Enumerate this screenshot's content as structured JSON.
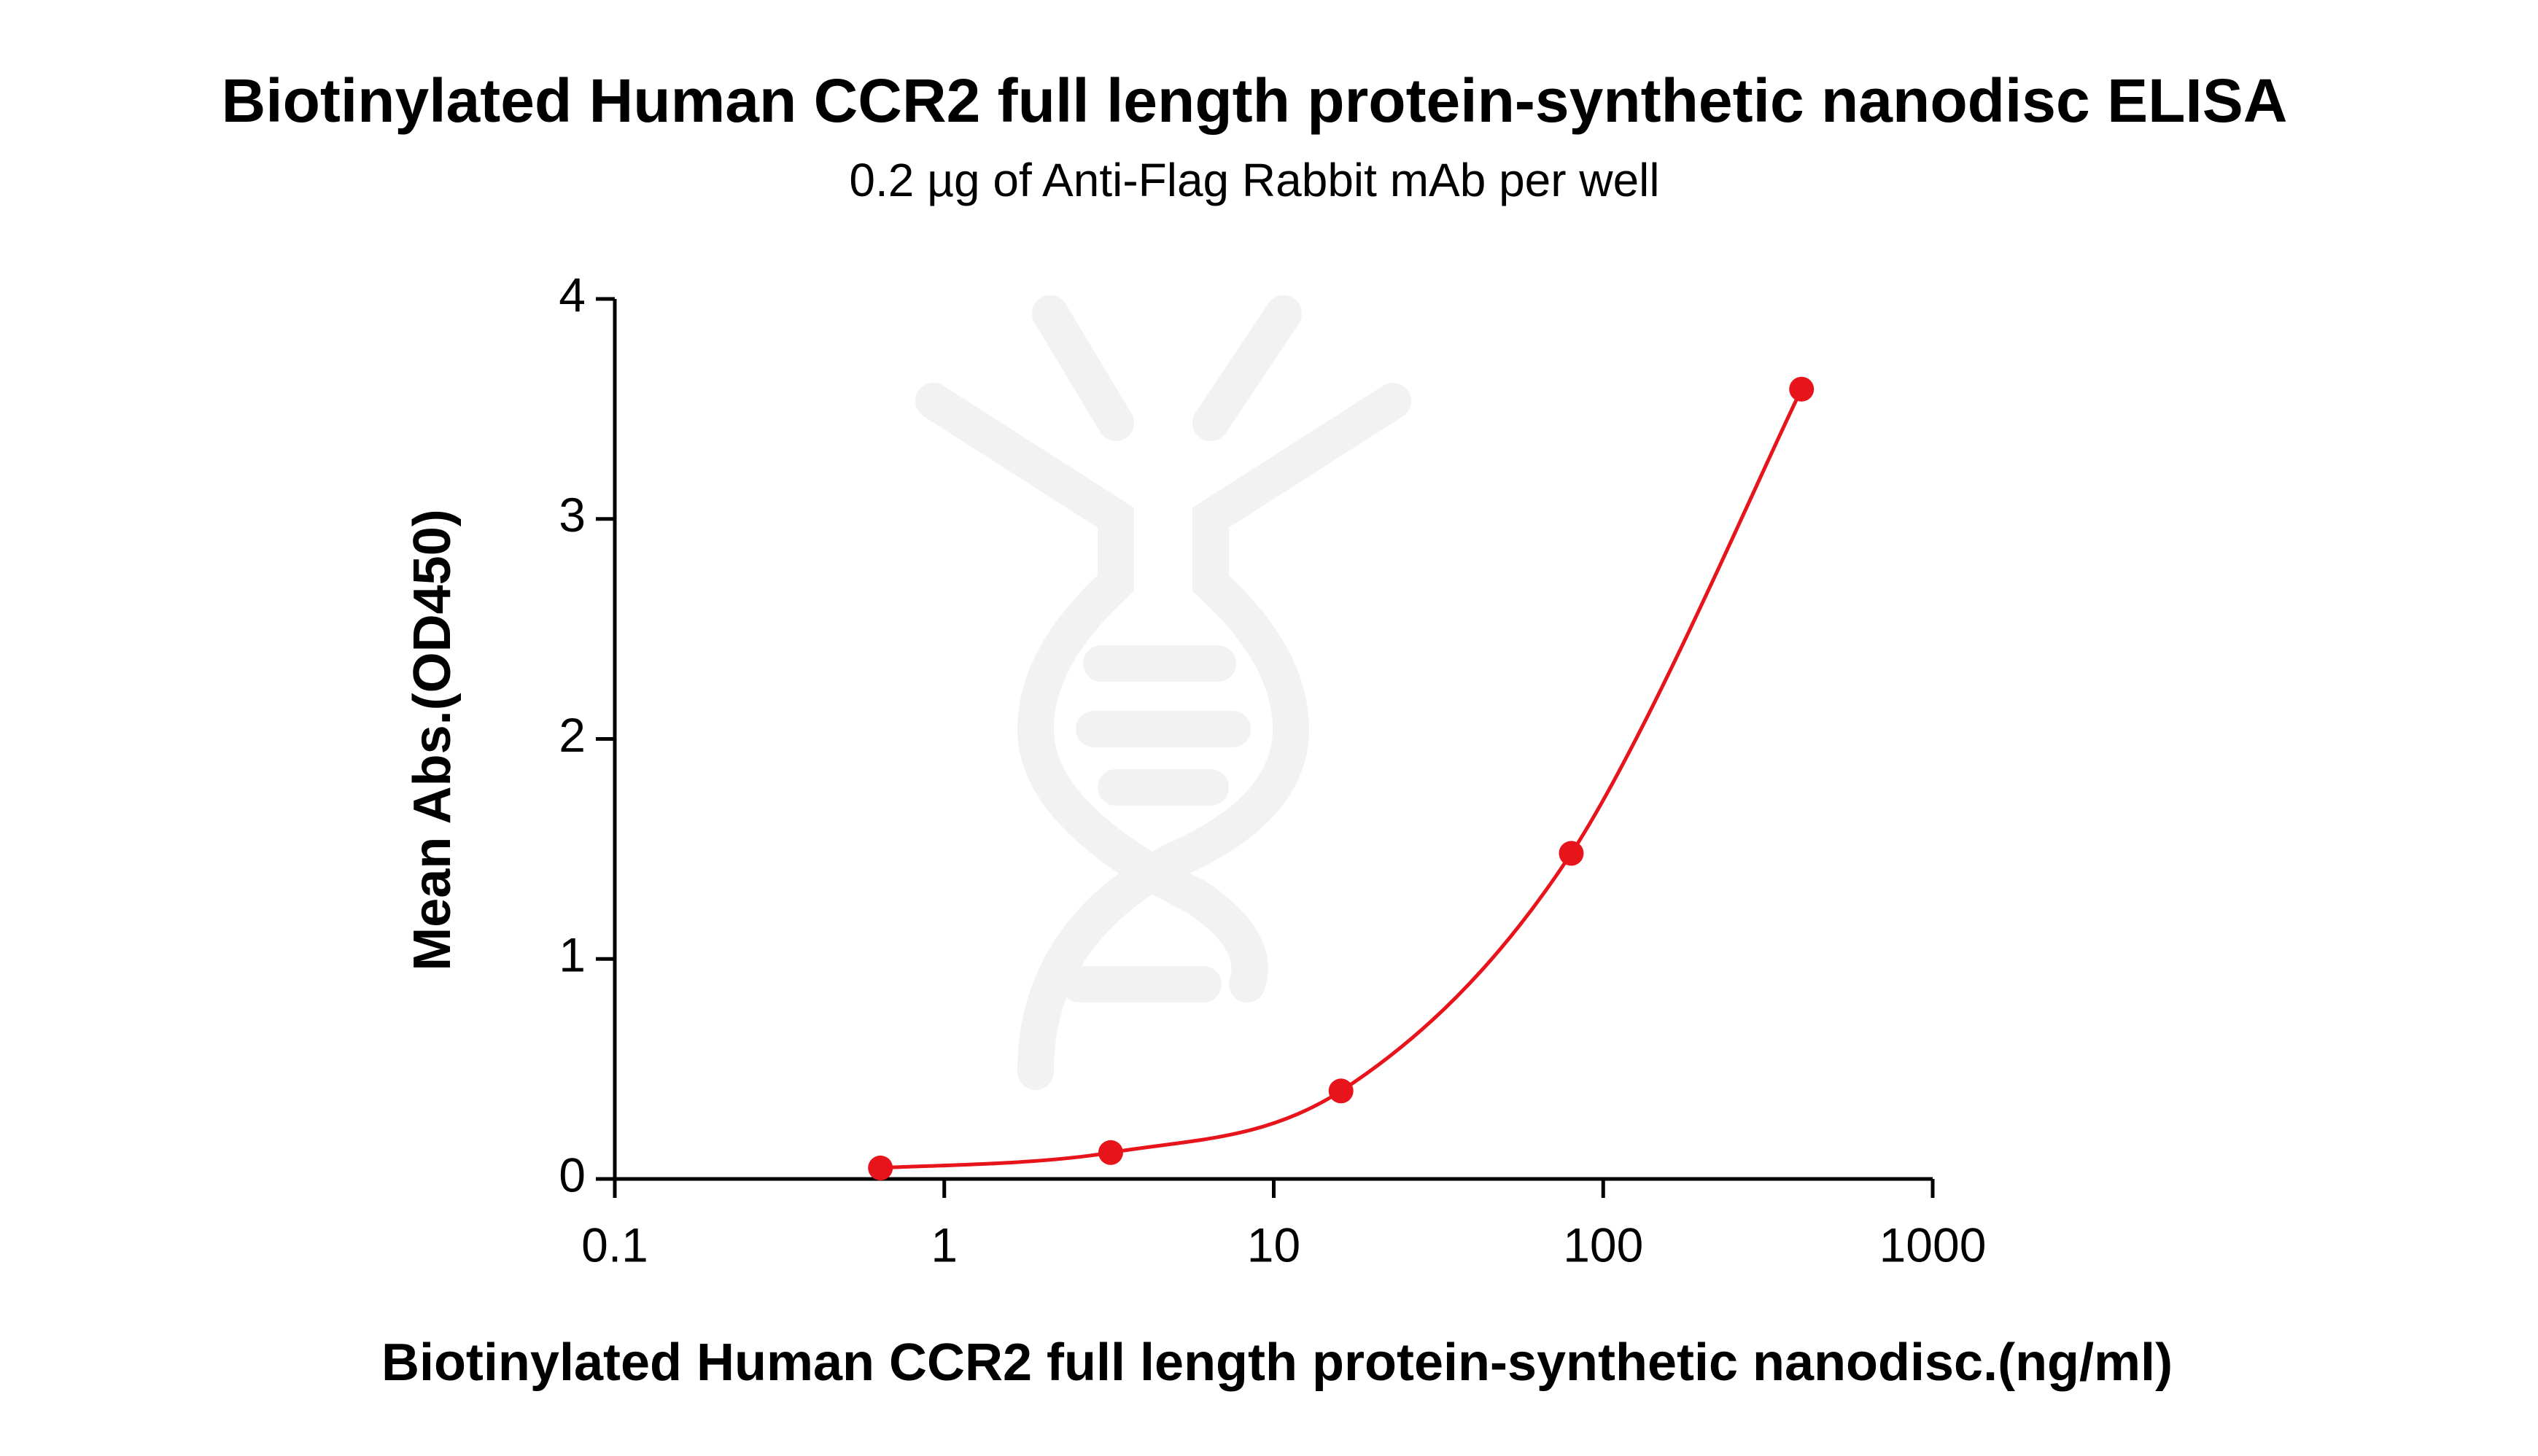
{
  "chart_data": {
    "type": "line",
    "title": "Biotinylated Human CCR2 full length protein-synthetic nanodisc ELISA",
    "subtitle": "0.2 µg of Anti-Flag Rabbit mAb per well",
    "x_label": "Biotinylated Human CCR2 full length protein-synthetic nanodisc.(ng/ml)",
    "y_label": "Mean Abs.(OD450)",
    "x": [
      0.64,
      3.2,
      16,
      80,
      400
    ],
    "series": [
      {
        "color": "#e8141b",
        "values": [
          0.05,
          0.12,
          0.4,
          1.48,
          3.59
        ]
      }
    ],
    "x_log": true,
    "xlim": [
      0.1,
      1000
    ],
    "xticks": [
      0.1,
      1,
      10,
      100,
      1000
    ],
    "ylim": [
      0,
      4
    ],
    "yticks": [
      0,
      1,
      2,
      3,
      4
    ]
  }
}
